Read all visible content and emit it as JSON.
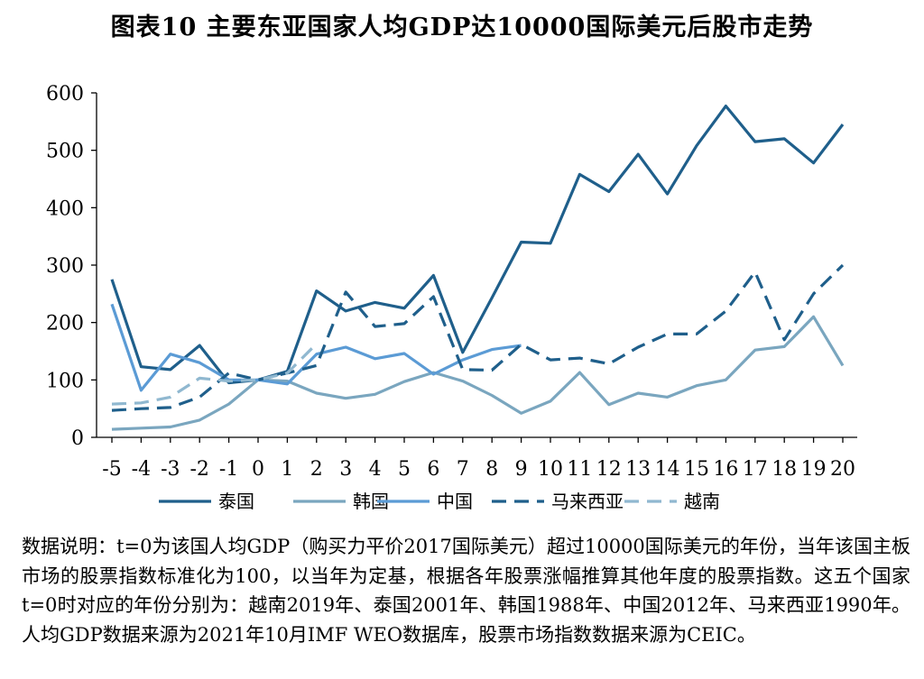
{
  "title": "图表10 主要东亚国家人均GDP达10000国际美元后股市走势",
  "note": "数据说明：t=0为该国人均GDP（购买力平价2017国际美元）超过10000国际美元的年份，当年该国主板市场的股票指数标准化为100，以当年为定基，根据各年股票涨幅推算其他年度的股票指数。这五个国家t=0时对应的年份分别为：越南2019年、泰国2001年、韩国1988年、中国2012年、马来西亚1990年。人均GDP数据来源为2021年10月IMF WEO数据库，股票市场指数数据来源为CEIC。",
  "chart_data": {
    "type": "line",
    "title": "图表10 主要东亚国家人均GDP达10000国际美元后股市走势",
    "xlabel": "",
    "ylabel": "",
    "ylim": [
      0,
      600
    ],
    "yticks": [
      0,
      100,
      200,
      300,
      400,
      500,
      600
    ],
    "x": [
      -5,
      -4,
      -3,
      -2,
      -1,
      0,
      1,
      2,
      3,
      4,
      5,
      6,
      7,
      8,
      9,
      10,
      11,
      12,
      13,
      14,
      15,
      16,
      17,
      18,
      19,
      20
    ],
    "grid": false,
    "legend_position": "bottom",
    "series": [
      {
        "name": "泰国",
        "color": "#1f5f8b",
        "dash": "solid",
        "values": [
          275,
          123,
          118,
          160,
          95,
          100,
          115,
          255,
          220,
          235,
          225,
          282,
          148,
          243,
          340,
          338,
          458,
          428,
          493,
          424,
          508,
          577,
          515,
          520,
          478,
          545
        ]
      },
      {
        "name": "韩国",
        "color": "#7aa6bf",
        "dash": "solid",
        "values": [
          14,
          16,
          18,
          30,
          58,
          100,
          98,
          77,
          68,
          75,
          97,
          113,
          98,
          73,
          42,
          63,
          113,
          57,
          77,
          70,
          90,
          100,
          152,
          158,
          210,
          125
        ]
      },
      {
        "name": "中国",
        "color": "#5b9bd5",
        "dash": "solid",
        "values": [
          232,
          82,
          145,
          130,
          100,
          100,
          93,
          145,
          157,
          137,
          146,
          110,
          135,
          153,
          160,
          null,
          null,
          null,
          null,
          null,
          null,
          null,
          null,
          null,
          null,
          null
        ]
      },
      {
        "name": "马来西亚",
        "color": "#1f5f8b",
        "dash": "long",
        "values": [
          47,
          50,
          52,
          70,
          112,
          100,
          112,
          125,
          253,
          193,
          198,
          245,
          118,
          117,
          162,
          135,
          138,
          128,
          157,
          180,
          180,
          220,
          288,
          170,
          250,
          300
        ]
      },
      {
        "name": "越南",
        "color": "#90b8d0",
        "dash": "long",
        "values": [
          58,
          60,
          70,
          103,
          98,
          100,
          112,
          163,
          null,
          null,
          null,
          null,
          null,
          null,
          null,
          null,
          null,
          null,
          null,
          null,
          null,
          null,
          null,
          null,
          null,
          null
        ]
      }
    ]
  }
}
